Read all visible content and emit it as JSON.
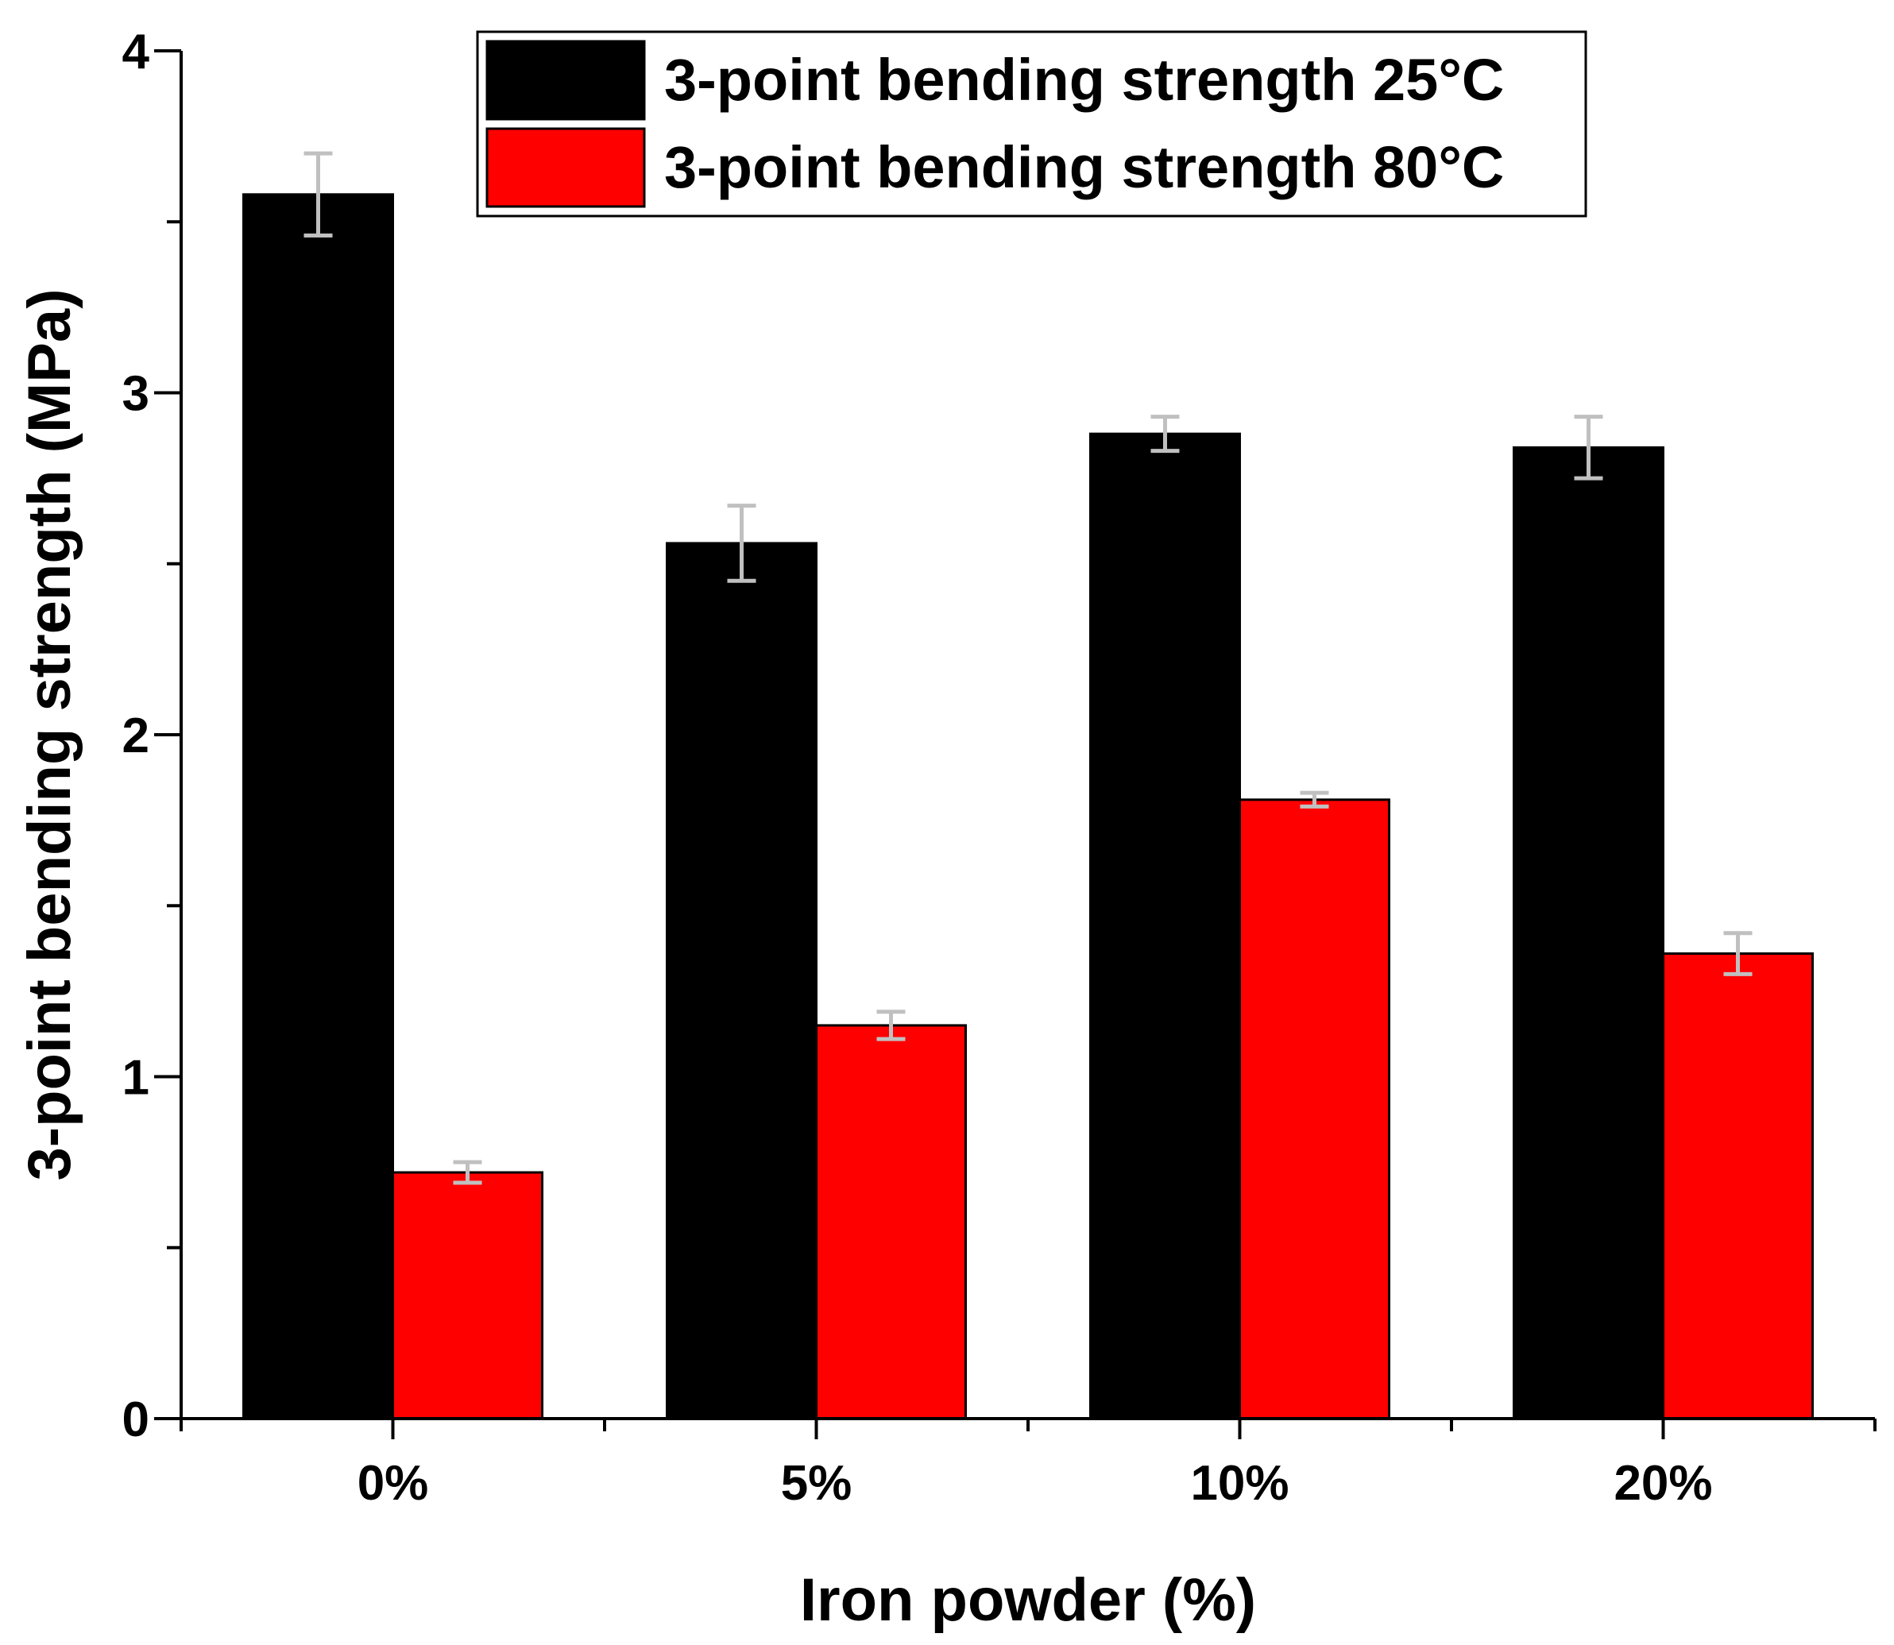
{
  "chart_data": {
    "type": "bar",
    "title": "",
    "xlabel": "Iron powder (%)",
    "ylabel": "3-point bending strength (MPa)",
    "categories": [
      "0%",
      "5%",
      "10%",
      "20%"
    ],
    "series": [
      {
        "name": "3-point bending strength 25°C",
        "color": "#000000",
        "values": [
          3.58,
          2.56,
          2.88,
          2.84
        ],
        "errors": [
          0.12,
          0.11,
          0.05,
          0.09
        ]
      },
      {
        "name": "3-point bending strength 80°C",
        "color": "#ff0000",
        "values": [
          0.72,
          1.15,
          1.81,
          1.36
        ],
        "errors": [
          0.03,
          0.04,
          0.02,
          0.06
        ]
      }
    ],
    "ylim": [
      0,
      4
    ],
    "yticks": [
      {
        "value": 0,
        "label": "0"
      },
      {
        "value": 1,
        "label": "1"
      },
      {
        "value": 2,
        "label": "2"
      },
      {
        "value": 3,
        "label": "3"
      },
      {
        "value": 4,
        "label": "4"
      }
    ],
    "y_minor_ticks": [
      0.5,
      1.5,
      2.5,
      3.5
    ],
    "error_bar_color": "#c0c0c0",
    "legend_position": "top-right",
    "grid": false
  }
}
